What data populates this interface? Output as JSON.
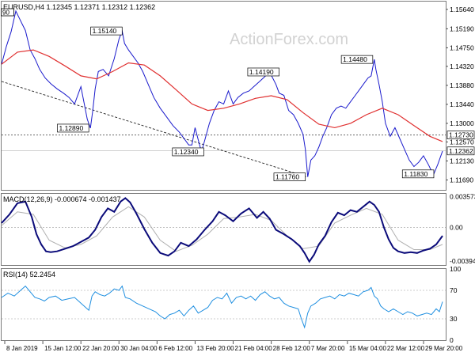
{
  "chart_data": [
    {
      "type": "line",
      "panel": "price",
      "title": "EURUSD,H4  1.12345 1.12371 1.12312 1.12362",
      "watermark": "ActionForex.com",
      "top_left_tag": "90",
      "x_tick_labels": [
        "8 Jan 2019",
        "15 Jan 12:00",
        "22 Jan 20:00",
        "30 Jan 04:00",
        "6 Feb 12:00",
        "13 Feb 20:00",
        "21 Feb 04:00",
        "28 Feb 12:00",
        "7 Mar 20:00",
        "15 Mar 04:00",
        "22 Mar 12:00",
        "29 Mar 20:00"
      ],
      "ylim": [
        1.1146,
        1.1582
      ],
      "y_ticks": [
        1.1564,
        1.1519,
        1.1475,
        1.1432,
        1.1388,
        1.1344,
        1.13,
        1.1257,
        1.1213,
        1.1169
      ],
      "y_tick_labels": [
        "1.15640",
        "1.15190",
        "1.14750",
        "1.14320",
        "1.13880",
        "1.13440",
        "1.13000",
        "1.12570",
        "1.12130",
        "1.11690"
      ],
      "current_price": {
        "value": 1.12362,
        "label": "1.12362"
      },
      "horizontal_level": {
        "value": 1.1273,
        "label": "1.12730"
      },
      "trendline": {
        "x": [
          0,
          385
        ],
        "y": [
          1.1397,
          1.1176
        ]
      },
      "annotations": [
        {
          "label": "1.15140",
          "x": 152,
          "y": 1.1514,
          "align": "left"
        },
        {
          "label": "1.14190",
          "x": 350,
          "y": 1.1419,
          "align": "left"
        },
        {
          "label": "1.14480",
          "x": 468,
          "y": 1.1448,
          "align": "left"
        },
        {
          "label": "1.12890",
          "x": 110,
          "y": 1.1289,
          "align": "left"
        },
        {
          "label": "1.12340",
          "x": 255,
          "y": 1.1234,
          "align": "left"
        },
        {
          "label": "1.11760",
          "x": 383,
          "y": 1.1176,
          "align": "left"
        },
        {
          "label": "1.11830",
          "x": 545,
          "y": 1.1183,
          "align": "left"
        }
      ],
      "x_range": [
        0,
        560
      ],
      "series": [
        {
          "name": "price",
          "x": [
            0,
            6,
            12,
            18,
            22,
            26,
            30,
            36,
            42,
            48,
            55,
            62,
            70,
            78,
            85,
            92,
            100,
            108,
            112,
            115,
            118,
            122,
            128,
            135,
            142,
            148,
            152,
            155,
            160,
            166,
            172,
            178,
            185,
            192,
            200,
            208,
            216,
            224,
            230,
            236,
            240,
            244,
            248,
            252,
            256,
            262,
            268,
            274,
            280,
            286,
            292,
            298,
            305,
            312,
            318,
            324,
            330,
            338,
            346,
            350,
            356,
            362,
            368,
            374,
            380,
            383,
            386,
            390,
            395,
            400,
            405,
            410,
            416,
            422,
            428,
            434,
            440,
            446,
            452,
            458,
            462,
            466,
            470,
            472,
            476,
            480,
            484,
            490,
            496,
            502,
            508,
            514,
            520,
            526,
            532,
            538,
            542,
            545,
            550,
            556
          ],
          "y": [
            1.1437,
            1.1478,
            1.1512,
            1.156,
            1.1545,
            1.153,
            1.1515,
            1.147,
            1.145,
            1.1425,
            1.1405,
            1.1392,
            1.138,
            1.137,
            1.136,
            1.1345,
            1.1385,
            1.131,
            1.1289,
            1.133,
            1.138,
            1.142,
            1.1425,
            1.141,
            1.145,
            1.1495,
            1.1514,
            1.1485,
            1.147,
            1.1455,
            1.144,
            1.142,
            1.139,
            1.136,
            1.1335,
            1.1315,
            1.1295,
            1.128,
            1.1265,
            1.125,
            1.125,
            1.129,
            1.1262,
            1.1234,
            1.126,
            1.13,
            1.133,
            1.135,
            1.1345,
            1.1375,
            1.1345,
            1.136,
            1.137,
            1.1375,
            1.1385,
            1.1395,
            1.1405,
            1.1419,
            1.139,
            1.137,
            1.1365,
            1.133,
            1.132,
            1.13,
            1.1275,
            1.124,
            1.1176,
            1.1215,
            1.1225,
            1.1245,
            1.127,
            1.129,
            1.132,
            1.1335,
            1.134,
            1.1335,
            1.135,
            1.1365,
            1.138,
            1.1395,
            1.1405,
            1.141,
            1.1448,
            1.1425,
            1.139,
            1.135,
            1.13,
            1.127,
            1.129,
            1.1265,
            1.124,
            1.1215,
            1.12,
            1.121,
            1.1225,
            1.1205,
            1.119,
            1.1183,
            1.1205,
            1.1236
          ],
          "color": "#1a1acc"
        },
        {
          "name": "moving-average",
          "x": [
            0,
            20,
            40,
            60,
            80,
            100,
            120,
            140,
            160,
            180,
            200,
            220,
            240,
            260,
            280,
            300,
            320,
            340,
            360,
            380,
            400,
            420,
            440,
            460,
            480,
            500,
            520,
            540,
            556
          ],
          "y": [
            1.1437,
            1.1465,
            1.147,
            1.1455,
            1.1433,
            1.141,
            1.1403,
            1.142,
            1.144,
            1.1435,
            1.141,
            1.1378,
            1.1345,
            1.133,
            1.1335,
            1.1345,
            1.1358,
            1.1364,
            1.1355,
            1.1325,
            1.1298,
            1.129,
            1.13,
            1.132,
            1.1335,
            1.132,
            1.1295,
            1.127,
            1.1258
          ],
          "color": "#e03030"
        }
      ]
    },
    {
      "type": "line",
      "panel": "macd",
      "title": "MACD(12,26,9) -0.000674 -0.001437",
      "ylim": [
        -0.0044,
        0.0039
      ],
      "y_tick_labels": [
        {
          "label": "0.003573",
          "value": 0.003573
        },
        {
          "label": "0.00",
          "value": 0.0
        },
        {
          "label": "-0.003945",
          "value": -0.003945
        }
      ],
      "series": [
        {
          "name": "MACD",
          "x": [
            0,
            10,
            20,
            30,
            38,
            44,
            50,
            56,
            62,
            70,
            80,
            90,
            100,
            110,
            118,
            126,
            134,
            142,
            150,
            156,
            162,
            170,
            180,
            190,
            200,
            210,
            218,
            226,
            236,
            246,
            256,
            266,
            274,
            282,
            292,
            302,
            312,
            322,
            330,
            338,
            346,
            356,
            366,
            376,
            382,
            388,
            394,
            400,
            408,
            416,
            424,
            432,
            440,
            448,
            456,
            464,
            470,
            476,
            482,
            488,
            494,
            500,
            508,
            516,
            524,
            532,
            540,
            548,
            556
          ],
          "y": [
            0.0005,
            0.0015,
            0.0028,
            0.003,
            0.0012,
            -0.0008,
            -0.002,
            -0.0028,
            -0.0029,
            -0.0028,
            -0.0025,
            -0.0022,
            -0.0017,
            -0.0012,
            -0.0003,
            0.0012,
            0.0022,
            0.0018,
            0.003,
            0.0034,
            0.0029,
            0.0016,
            -0.0002,
            -0.0018,
            -0.003,
            -0.0033,
            -0.0028,
            -0.0018,
            -0.0022,
            -0.0014,
            -0.0003,
            0.0007,
            0.0018,
            0.0014,
            0.0007,
            0.0016,
            0.0022,
            0.0011,
            0.0018,
            0.001,
            -0.0003,
            -0.0008,
            -0.0014,
            -0.0022,
            -0.003,
            -0.004,
            -0.0032,
            -0.002,
            -0.001,
            0.0006,
            0.0017,
            0.0014,
            0.002,
            0.0018,
            0.0024,
            0.003,
            0.0026,
            0.0018,
            0.0,
            -0.0014,
            -0.0024,
            -0.0028,
            -0.003,
            -0.0029,
            -0.003,
            -0.0027,
            -0.0025,
            -0.002,
            -0.001
          ],
          "color": "#0b0b7a"
        },
        {
          "name": "signal",
          "x": [
            0,
            20,
            40,
            60,
            80,
            100,
            120,
            140,
            160,
            180,
            200,
            220,
            240,
            260,
            280,
            300,
            320,
            340,
            360,
            380,
            400,
            420,
            440,
            460,
            480,
            500,
            520,
            540,
            556
          ],
          "y": [
            0.0002,
            0.0018,
            0.0015,
            -0.0015,
            -0.0024,
            -0.002,
            -0.001,
            0.0012,
            0.0024,
            0.0012,
            -0.0015,
            -0.0028,
            -0.0021,
            -0.0008,
            0.001,
            0.0012,
            0.0015,
            0.0008,
            -0.001,
            -0.0025,
            -0.0022,
            0.0005,
            0.0014,
            0.0022,
            0.0015,
            -0.0015,
            -0.0026,
            -0.0026,
            -0.002
          ],
          "color": "#b0b0b0"
        }
      ]
    },
    {
      "type": "line",
      "panel": "rsi",
      "title": "RSI(14) 52.2454",
      "ylim": [
        0,
        100
      ],
      "y_tick_labels": [
        {
          "label": "100",
          "value": 100
        },
        {
          "label": "70",
          "value": 70
        },
        {
          "label": "30",
          "value": 30
        },
        {
          "label": "0",
          "value": 0
        }
      ],
      "levels": [
        70,
        30
      ],
      "series": [
        {
          "name": "RSI",
          "x": [
            0,
            8,
            16,
            24,
            30,
            36,
            42,
            48,
            54,
            60,
            68,
            76,
            84,
            92,
            100,
            106,
            110,
            114,
            118,
            124,
            130,
            136,
            142,
            148,
            152,
            156,
            162,
            170,
            178,
            186,
            194,
            200,
            206,
            212,
            218,
            224,
            230,
            236,
            242,
            248,
            254,
            260,
            266,
            272,
            278,
            284,
            290,
            296,
            302,
            308,
            314,
            320,
            326,
            332,
            338,
            344,
            350,
            356,
            362,
            368,
            374,
            378,
            382,
            386,
            390,
            396,
            402,
            408,
            414,
            420,
            426,
            432,
            438,
            444,
            450,
            456,
            462,
            466,
            470,
            474,
            478,
            482,
            488,
            494,
            500,
            506,
            512,
            518,
            524,
            530,
            536,
            542,
            548,
            552,
            556
          ],
          "y": [
            60,
            66,
            62,
            70,
            76,
            68,
            60,
            58,
            55,
            60,
            62,
            56,
            58,
            60,
            52,
            46,
            42,
            62,
            68,
            64,
            62,
            66,
            72,
            70,
            76,
            60,
            58,
            52,
            48,
            44,
            40,
            34,
            30,
            36,
            38,
            42,
            34,
            42,
            48,
            38,
            42,
            46,
            56,
            60,
            58,
            66,
            52,
            60,
            62,
            58,
            62,
            56,
            64,
            68,
            62,
            58,
            60,
            52,
            48,
            46,
            44,
            30,
            18,
            38,
            48,
            52,
            58,
            60,
            62,
            58,
            64,
            62,
            66,
            64,
            62,
            68,
            70,
            74,
            62,
            58,
            48,
            44,
            40,
            44,
            40,
            36,
            40,
            38,
            34,
            36,
            38,
            36,
            44,
            40,
            54
          ],
          "color": "#1f8fe0"
        }
      ]
    }
  ]
}
